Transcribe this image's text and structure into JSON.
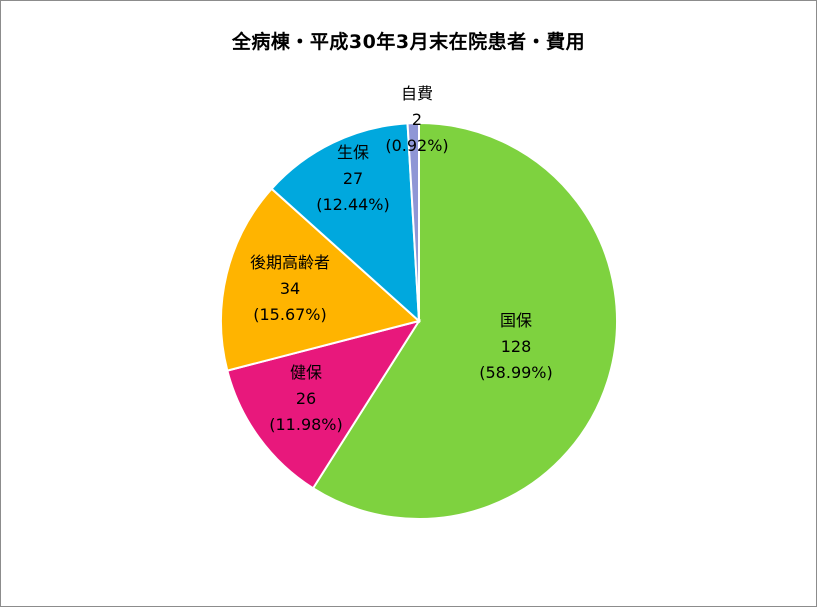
{
  "chart_data": {
    "type": "pie",
    "title": "全病棟・平成30年3月末在院患者・費用",
    "legend": "none",
    "slices": [
      {
        "name": "国保",
        "value": 128,
        "percent_label": "(58.99%)",
        "color": "#7ed23f"
      },
      {
        "name": "健保",
        "value": 26,
        "percent_label": "(11.98%)",
        "color": "#e8187c"
      },
      {
        "name": "後期高齢者",
        "value": 34,
        "percent_label": "(15.67%)",
        "color": "#ffb400"
      },
      {
        "name": "生保",
        "value": 27,
        "percent_label": "(12.44%)",
        "color": "#00a8de"
      },
      {
        "name": "自費",
        "value": 2,
        "percent_label": "(0.92%)",
        "color": "#8f96d6"
      }
    ]
  }
}
